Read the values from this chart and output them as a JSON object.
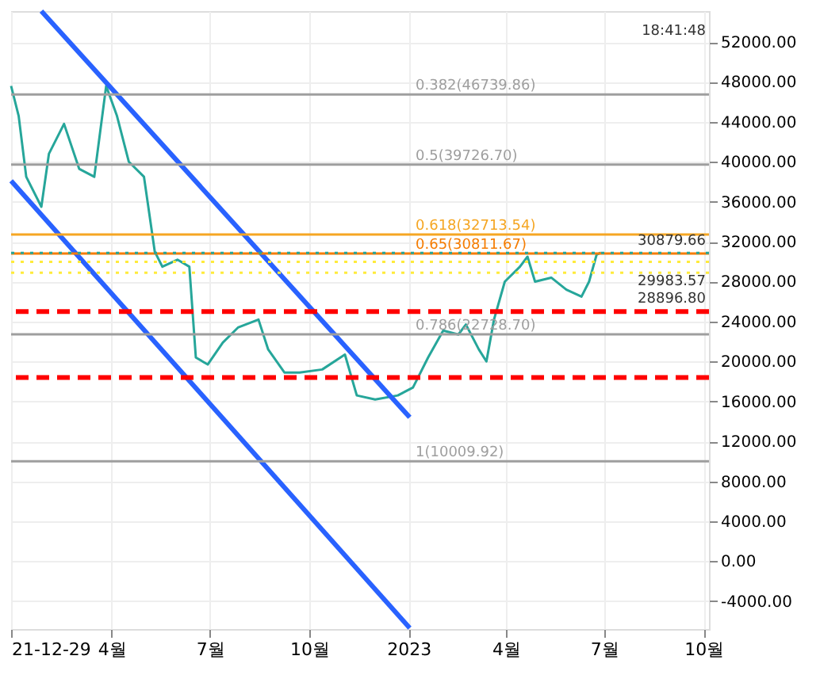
{
  "chart_data": {
    "type": "line",
    "x": [
      "2021-12-29",
      "2022-01-05",
      "2022-01-12",
      "2022-01-26",
      "2022-02-02",
      "2022-02-16",
      "2022-03-02",
      "2022-03-16",
      "2022-03-27",
      "2022-04-06",
      "2022-04-17",
      "2022-05-01",
      "2022-05-11",
      "2022-05-18",
      "2022-06-01",
      "2022-06-12",
      "2022-06-18",
      "2022-06-29",
      "2022-07-13",
      "2022-07-27",
      "2022-08-15",
      "2022-08-24",
      "2022-09-08",
      "2022-09-22",
      "2022-10-13",
      "2022-11-03",
      "2022-11-14",
      "2022-12-01",
      "2022-12-22",
      "2023-01-05",
      "2023-01-19",
      "2023-02-02",
      "2023-02-16",
      "2023-02-23",
      "2023-03-07",
      "2023-03-14",
      "2023-03-21",
      "2023-03-31",
      "2023-04-14",
      "2023-04-21",
      "2023-04-28",
      "2023-05-13",
      "2023-05-27",
      "2023-06-10",
      "2023-06-17",
      "2023-06-24",
      "2023-06-28"
    ],
    "series": [
      {
        "color": "#26a69a",
        "values": [
          47600,
          44600,
          38500,
          35500,
          40800,
          43800,
          39300,
          38500,
          47600,
          44600,
          40000,
          38500,
          31000,
          29500,
          30200,
          29500,
          20400,
          19700,
          21900,
          23400,
          24200,
          21200,
          18900,
          18900,
          19200,
          20700,
          16600,
          16200,
          16600,
          17400,
          20400,
          23100,
          22700,
          23700,
          21200,
          20000,
          24200,
          28000,
          29500,
          30500,
          28000,
          28400,
          27200,
          26500,
          28000,
          30700,
          30900
        ]
      },
      {
        "color": "#2962ff",
        "x": [
          "2022-01-26",
          "2023-01-02"
        ],
        "values": [
          55100,
          14400
        ]
      },
      {
        "color": "#2962ff",
        "x": [
          "2021-12-29",
          "2023-01-02"
        ],
        "values": [
          38100,
          -6700
        ]
      }
    ],
    "xlim": [
      "2021-12-29",
      "2023-10-06"
    ],
    "xticks": [
      {
        "value": "2021-12-29",
        "label": "21-12-29"
      },
      {
        "value": "2022-04-01",
        "label": "4월"
      },
      {
        "value": "2022-07-01",
        "label": "7월"
      },
      {
        "value": "2022-10-01",
        "label": "10월"
      },
      {
        "value": "2023-01-01",
        "label": "2023"
      },
      {
        "value": "2023-04-01",
        "label": "4월"
      },
      {
        "value": "2023-07-01",
        "label": "7월"
      },
      {
        "value": "2023-10-01",
        "label": "10월"
      }
    ],
    "ylim": [
      -6800,
      55100
    ],
    "yticks": [
      {
        "value": -4000,
        "label": "-4000.00"
      },
      {
        "value": 0,
        "label": "0.00"
      },
      {
        "value": 4000,
        "label": "4000.00"
      },
      {
        "value": 8000,
        "label": "8000.00"
      },
      {
        "value": 12000,
        "label": "12000.00"
      },
      {
        "value": 16000,
        "label": "16000.00"
      },
      {
        "value": 20000,
        "label": "20000.00"
      },
      {
        "value": 24000,
        "label": "24000.00"
      },
      {
        "value": 28000,
        "label": "28000.00"
      },
      {
        "value": 32000,
        "label": "32000.00"
      },
      {
        "value": 36000,
        "label": "36000.00"
      },
      {
        "value": 40000,
        "label": "40000.00"
      },
      {
        "value": 44000,
        "label": "44000.00"
      },
      {
        "value": 48000,
        "label": "48000.00"
      },
      {
        "value": 52000,
        "label": "52000.00"
      }
    ],
    "grid": true,
    "ref_lines": [
      {
        "axis": "y",
        "value": 46739.86,
        "label": "0.382(46739.86)",
        "color": "#9e9e9e"
      },
      {
        "axis": "y",
        "value": 39726.7,
        "label": "0.5(39726.70)",
        "color": "#9e9e9e"
      },
      {
        "axis": "y",
        "value": 32713.54,
        "label": "0.618(32713.54)",
        "color": "#f5a623"
      },
      {
        "axis": "y",
        "value": 30811.67,
        "label": "0.65(30811.67)",
        "color": "#f57c00"
      },
      {
        "axis": "y",
        "value": 22728.7,
        "label": "0.786(22728.70)",
        "color": "#9e9e9e"
      },
      {
        "axis": "y",
        "value": 10009.92,
        "label": "1(10009.92)",
        "color": "#9e9e9e"
      },
      {
        "axis": "y",
        "value": 30879.66,
        "label": "30879.66",
        "color": "#26a69a",
        "line_style": "dotted"
      },
      {
        "axis": "y",
        "value": 29983.57,
        "label": "29983.57",
        "color": "#ffeb3b",
        "line_style": "dotted"
      },
      {
        "axis": "y",
        "value": 28896.8,
        "label": "28896.80",
        "color": "#ffeb3b",
        "line_style": "dotted"
      },
      {
        "axis": "y",
        "value": 25000,
        "color": "#ff0000",
        "line_style": "dashed"
      },
      {
        "axis": "y",
        "value": 18400,
        "color": "#ff0000",
        "line_style": "dashed"
      }
    ],
    "annotations": [
      "18:41:48"
    ]
  }
}
